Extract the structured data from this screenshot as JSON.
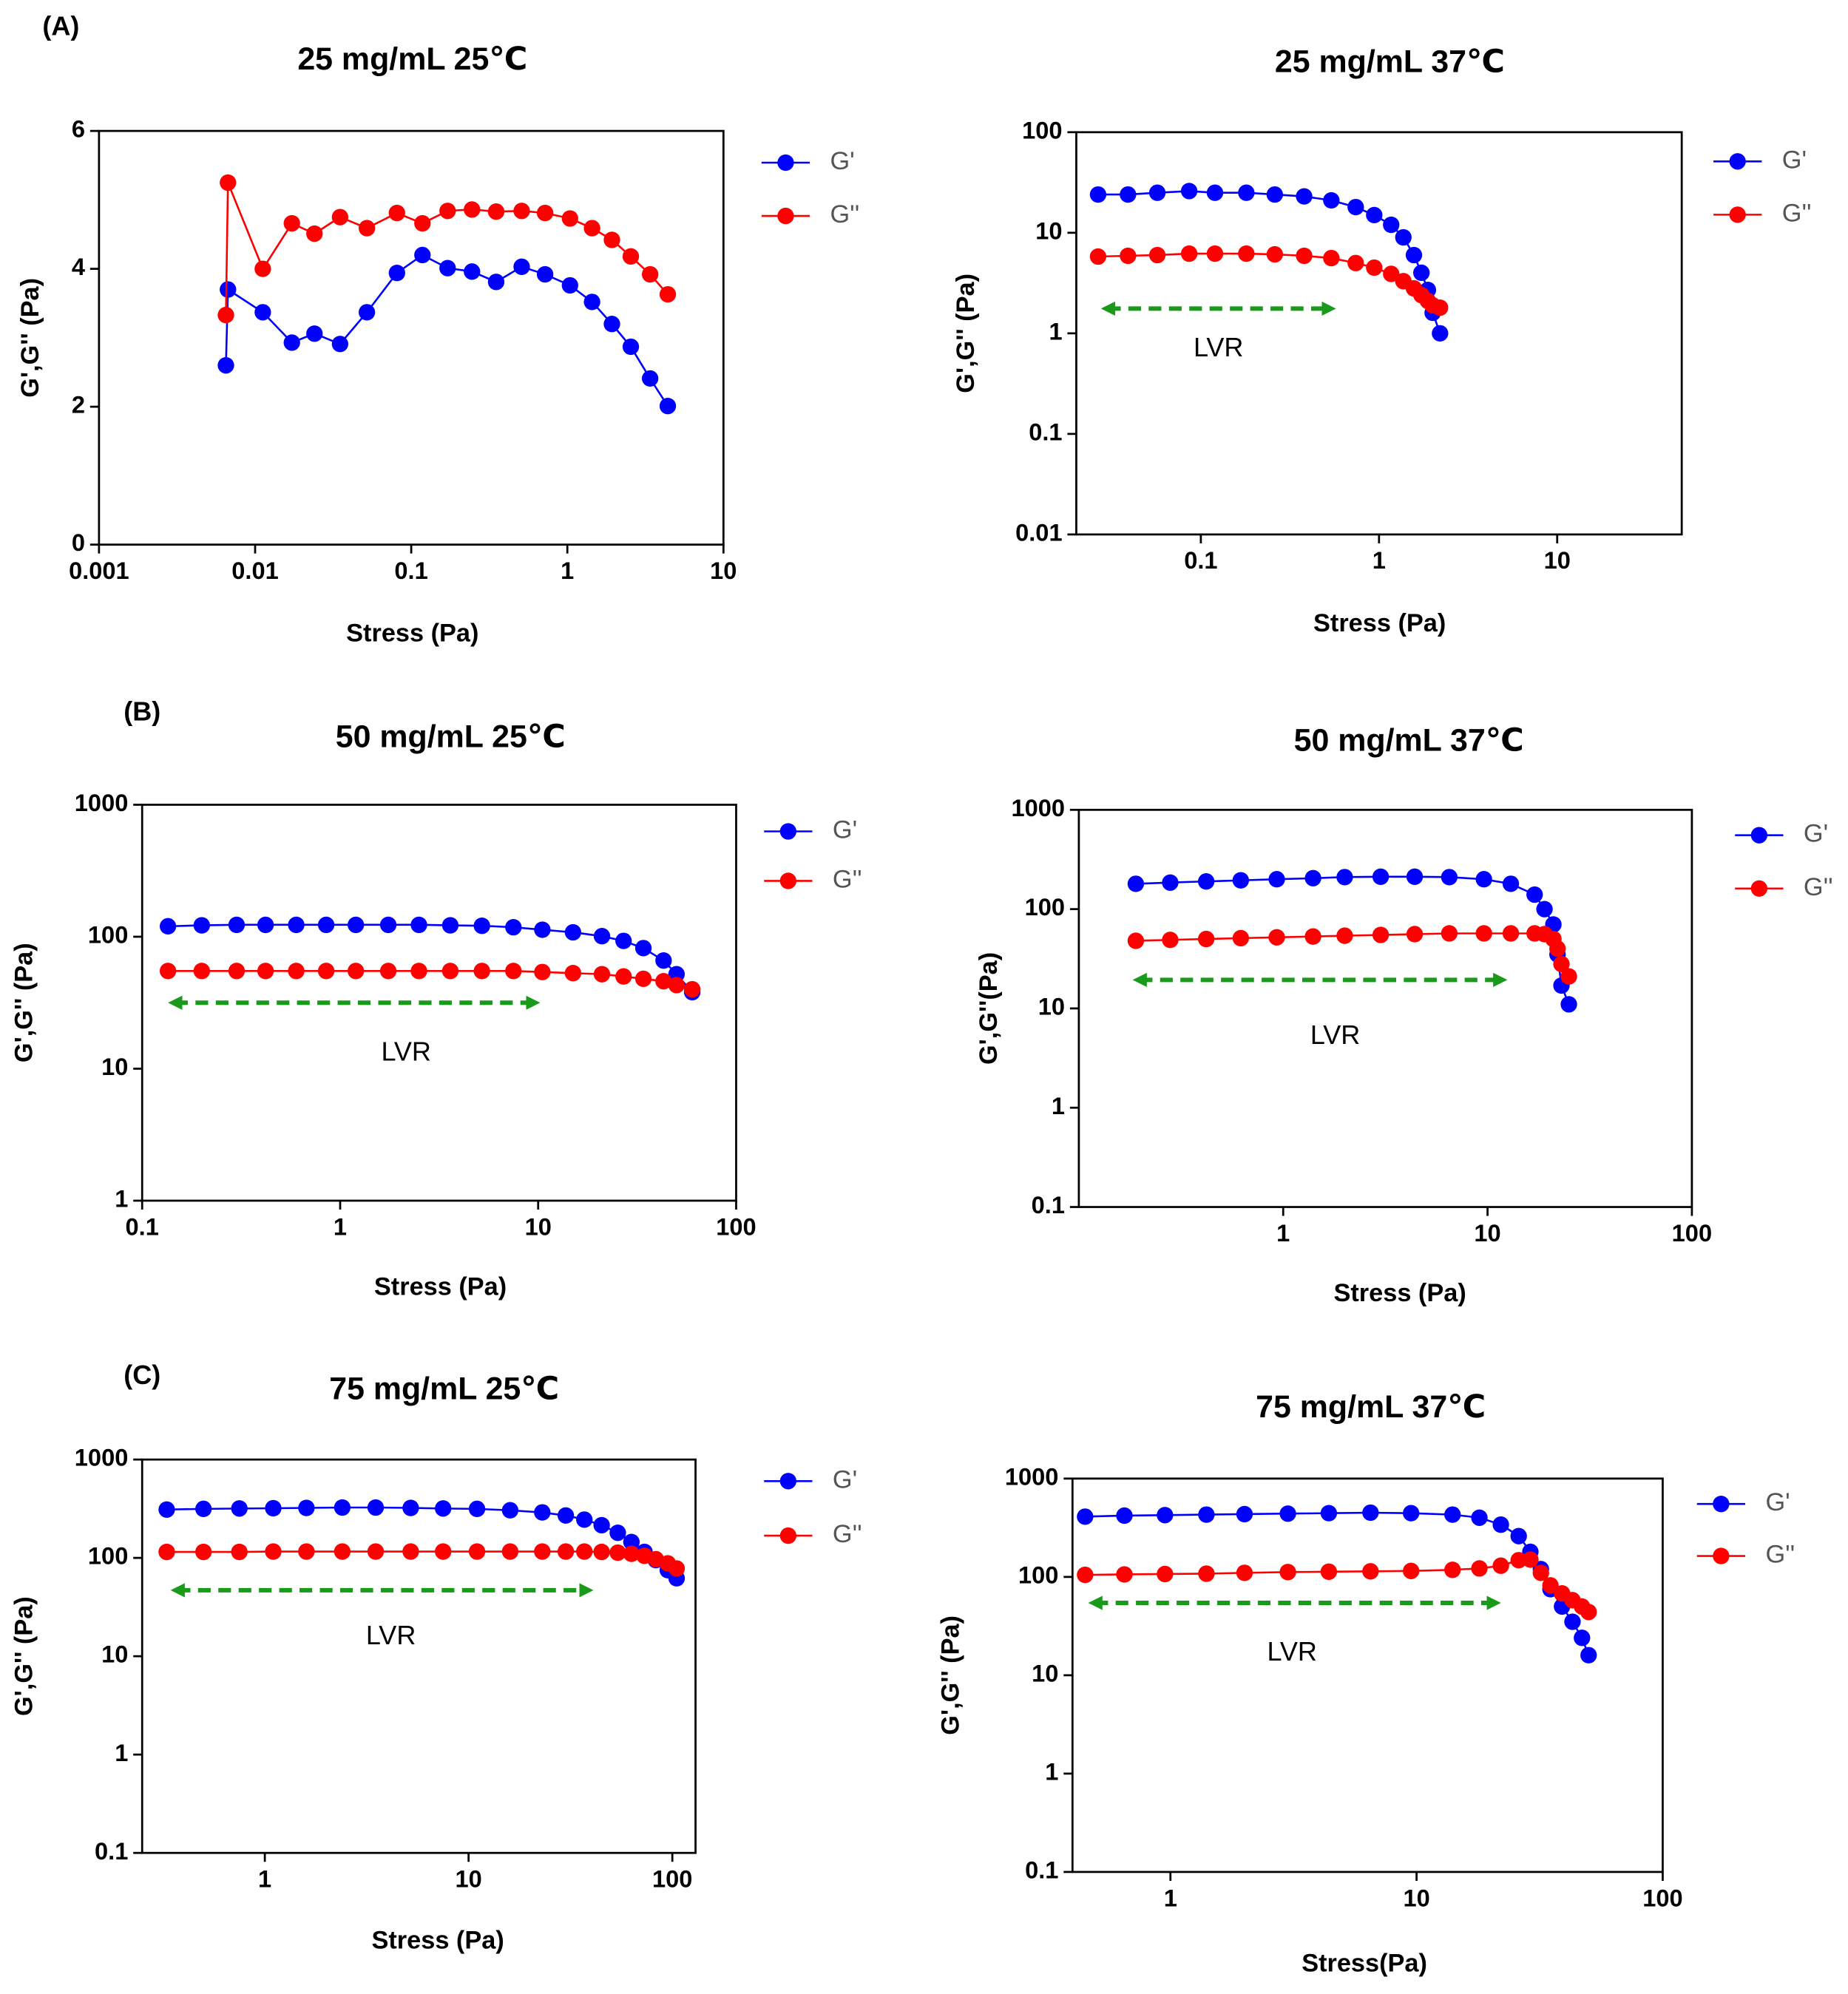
{
  "panel_labels": [
    "(A)",
    "(B)",
    "(C)"
  ],
  "chart_data": [
    {
      "type": "line",
      "title": "25 mg/mL 25℃",
      "xlabel": "Stress (Pa)",
      "ylabel": "G',G'' (Pa)",
      "xscale": "log",
      "yscale": "linear",
      "xlim": [
        0.001,
        10
      ],
      "xticks": [
        0.001,
        0.01,
        0.1,
        1,
        10
      ],
      "ylim": [
        0,
        6
      ],
      "yticks": [
        0,
        2,
        4,
        6
      ],
      "x": [
        0.0065,
        0.0067,
        0.0112,
        0.0172,
        0.024,
        0.035,
        0.052,
        0.081,
        0.118,
        0.171,
        0.245,
        0.35,
        0.51,
        0.72,
        1.04,
        1.44,
        1.93,
        2.55,
        3.39,
        4.4
      ],
      "series": [
        {
          "name": "G'",
          "color": "#0000ff",
          "values": [
            2.6,
            3.7,
            3.37,
            2.93,
            3.06,
            2.91,
            3.37,
            3.94,
            4.2,
            4.01,
            3.96,
            3.81,
            4.03,
            3.92,
            3.76,
            3.52,
            3.2,
            2.87,
            2.41,
            2.01
          ]
        },
        {
          "name": "G''",
          "color": "#ff0000",
          "values": [
            3.33,
            5.25,
            4.0,
            4.66,
            4.51,
            4.75,
            4.59,
            4.81,
            4.66,
            4.84,
            4.86,
            4.83,
            4.84,
            4.81,
            4.73,
            4.59,
            4.42,
            4.18,
            3.92,
            3.63
          ]
        }
      ]
    },
    {
      "type": "line",
      "title": "25 mg/mL 37℃",
      "xlabel": "Stress (Pa)",
      "ylabel": "G',G'' (Pa)",
      "xscale": "log",
      "yscale": "log",
      "xlim": [
        0.02,
        50
      ],
      "xticks": [
        0.1,
        1,
        10
      ],
      "ylim": [
        0.01,
        100
      ],
      "yticks": [
        0.01,
        0.1,
        1,
        10,
        100
      ],
      "annotations": [
        "LVR"
      ],
      "x": [
        0.0265,
        0.039,
        0.057,
        0.086,
        0.12,
        0.18,
        0.26,
        0.38,
        0.54,
        0.74,
        0.94,
        1.17,
        1.37,
        1.57,
        1.73,
        1.88,
        2.0,
        2.2
      ],
      "series": [
        {
          "name": "G'",
          "color": "#0000ff",
          "values": [
            24,
            24,
            25,
            26,
            25,
            25,
            24,
            23,
            21,
            18,
            15,
            12,
            9,
            6,
            4,
            2.7,
            1.6,
            1.0
          ]
        },
        {
          "name": "G''",
          "color": "#ff0000",
          "values": [
            5.8,
            5.9,
            6.0,
            6.2,
            6.2,
            6.2,
            6.1,
            5.9,
            5.6,
            5.0,
            4.5,
            3.9,
            3.3,
            2.8,
            2.4,
            2.1,
            1.9,
            1.8
          ]
        }
      ]
    },
    {
      "type": "line",
      "title": "50 mg/mL 25℃",
      "xlabel": "Stress (Pa)",
      "ylabel": "G',G'' (Pa)",
      "xscale": "log",
      "yscale": "log",
      "xlim": [
        0.1,
        100
      ],
      "xticks": [
        0.1,
        1,
        10,
        100
      ],
      "ylim": [
        1,
        1000
      ],
      "yticks": [
        1,
        10,
        100,
        1000
      ],
      "annotations": [
        "LVR"
      ],
      "x": [
        0.135,
        0.2,
        0.3,
        0.42,
        0.6,
        0.85,
        1.2,
        1.75,
        2.5,
        3.6,
        5.2,
        7.5,
        10.5,
        15,
        21,
        27,
        34,
        43,
        50,
        60
      ],
      "series": [
        {
          "name": "G'",
          "color": "#0000ff",
          "values": [
            120,
            122,
            123,
            123,
            123,
            123,
            123,
            123,
            123,
            122,
            121,
            118,
            113,
            108,
            101,
            93,
            82,
            66,
            52,
            38
          ]
        },
        {
          "name": "G''",
          "color": "#ff0000",
          "values": [
            55,
            55,
            55,
            55,
            55,
            55,
            55,
            55,
            55,
            55,
            55,
            55,
            54,
            53,
            52,
            50,
            48,
            46,
            43,
            40
          ]
        }
      ]
    },
    {
      "type": "line",
      "title": "50 mg/mL 37℃",
      "xlabel": "Stress (Pa)",
      "ylabel": "G',G''(Pa)",
      "xscale": "log",
      "yscale": "log",
      "xlim": [
        0.1,
        100
      ],
      "xticks": [
        1,
        10,
        100
      ],
      "ylim": [
        0.1,
        1000
      ],
      "yticks": [
        0.1,
        1,
        10,
        100,
        1000
      ],
      "annotations": [
        "LVR"
      ],
      "x": [
        0.19,
        0.28,
        0.42,
        0.62,
        0.93,
        1.4,
        2.0,
        3.0,
        4.4,
        6.5,
        9.6,
        13,
        17,
        19,
        21,
        22,
        23,
        25
      ],
      "series": [
        {
          "name": "G'",
          "color": "#0000ff",
          "values": [
            180,
            185,
            190,
            195,
            200,
            205,
            210,
            212,
            212,
            210,
            200,
            180,
            140,
            100,
            70,
            35,
            17,
            11
          ]
        },
        {
          "name": "G''",
          "color": "#ff0000",
          "values": [
            48,
            49,
            50,
            51,
            52,
            53,
            54,
            55,
            56,
            57,
            57,
            57,
            57,
            56,
            50,
            40,
            28,
            21
          ]
        }
      ]
    },
    {
      "type": "line",
      "title": "75 mg/mL 25℃",
      "xlabel": "Stress (Pa)",
      "ylabel": "G',G'' (Pa)",
      "xscale": "log",
      "yscale": "log",
      "xlim": [
        0.25,
        130
      ],
      "xticks": [
        1,
        10,
        100
      ],
      "ylim": [
        0.1,
        1000
      ],
      "yticks": [
        0.1,
        1,
        10,
        100,
        1000
      ],
      "annotations": [
        "LVR"
      ],
      "x": [
        0.33,
        0.5,
        0.75,
        1.1,
        1.6,
        2.4,
        3.5,
        5.2,
        7.5,
        11,
        16,
        23,
        30,
        37,
        45,
        54,
        63,
        73,
        83,
        95,
        105
      ],
      "series": [
        {
          "name": "G'",
          "color": "#0000ff",
          "values": [
            310,
            315,
            318,
            320,
            322,
            325,
            325,
            322,
            318,
            315,
            305,
            290,
            270,
            245,
            215,
            180,
            145,
            115,
            95,
            75,
            62
          ]
        },
        {
          "name": "G''",
          "color": "#ff0000",
          "values": [
            115,
            115,
            115,
            116,
            116,
            116,
            116,
            116,
            116,
            116,
            116,
            116,
            116,
            116,
            115,
            113,
            110,
            105,
            97,
            88,
            78
          ]
        }
      ]
    },
    {
      "type": "line",
      "title": "75 mg/mL 37℃",
      "xlabel": "Stress(Pa)",
      "ylabel": "G',G'' (Pa)",
      "xscale": "log",
      "yscale": "log",
      "xlim": [
        0.4,
        100
      ],
      "xticks": [
        1,
        10,
        100
      ],
      "ylim": [
        0.1,
        1000
      ],
      "yticks": [
        0.1,
        1,
        10,
        100,
        1000
      ],
      "annotations": [
        "LVR"
      ],
      "x": [
        0.45,
        0.65,
        0.95,
        1.4,
        2.0,
        3.0,
        4.4,
        6.5,
        9.5,
        14,
        18,
        22,
        26,
        29,
        32,
        35,
        39,
        43,
        47,
        50
      ],
      "series": [
        {
          "name": "G'",
          "color": "#0000ff",
          "values": [
            410,
            420,
            425,
            430,
            435,
            440,
            445,
            450,
            445,
            430,
            400,
            340,
            260,
            180,
            120,
            75,
            50,
            35,
            24,
            16
          ]
        },
        {
          "name": "G''",
          "color": "#ff0000",
          "values": [
            105,
            106,
            107,
            108,
            110,
            112,
            113,
            114,
            115,
            118,
            122,
            130,
            148,
            150,
            110,
            82,
            68,
            58,
            50,
            44
          ]
        }
      ]
    }
  ]
}
